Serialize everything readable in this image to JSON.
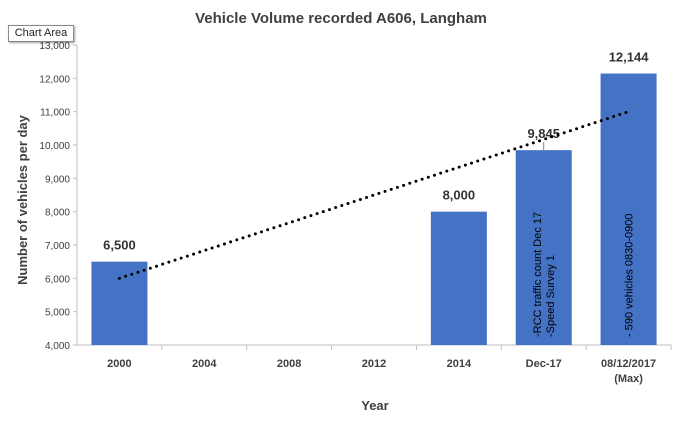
{
  "chart_area_tag": "Chart Area",
  "chart_data": {
    "type": "bar",
    "title": "Vehicle Volume recorded A606, Langham",
    "xlabel": "Year",
    "ylabel": "Number of vehicles per day",
    "ylim": [
      4000,
      13000
    ],
    "ytick_step": 1000,
    "ytick_labels": [
      "4,000",
      "5,000",
      "6,000",
      "7,000",
      "8,000",
      "9,000",
      "10,000",
      "11,000",
      "12,000",
      "13,000"
    ],
    "categories": [
      {
        "label": "2000",
        "label2": ""
      },
      {
        "label": "2004",
        "label2": ""
      },
      {
        "label": "2008",
        "label2": ""
      },
      {
        "label": "2012",
        "label2": ""
      },
      {
        "label": "2014",
        "label2": ""
      },
      {
        "label": "Dec-17",
        "label2": ""
      },
      {
        "label": "08/12/2017",
        "label2": "(Max)"
      }
    ],
    "values": [
      6500,
      null,
      null,
      null,
      8000,
      9845,
      12144
    ],
    "data_labels": [
      "6,500",
      "",
      "",
      "",
      "8,000",
      "9,845",
      "12,144"
    ],
    "bar_notes": [
      [],
      [],
      [],
      [],
      [],
      [
        "-RCC traffic count Dec 17",
        "-Speed Survey 1"
      ],
      [
        "- 590 vehicles 0830-0900"
      ]
    ],
    "trendline": {
      "style": "dotted",
      "from": {
        "category": "2000",
        "y": 6000
      },
      "to": {
        "category": "08/12/2017",
        "y": 11000
      }
    },
    "bar_color": "#4472C4",
    "grid": false,
    "legend": "none"
  }
}
